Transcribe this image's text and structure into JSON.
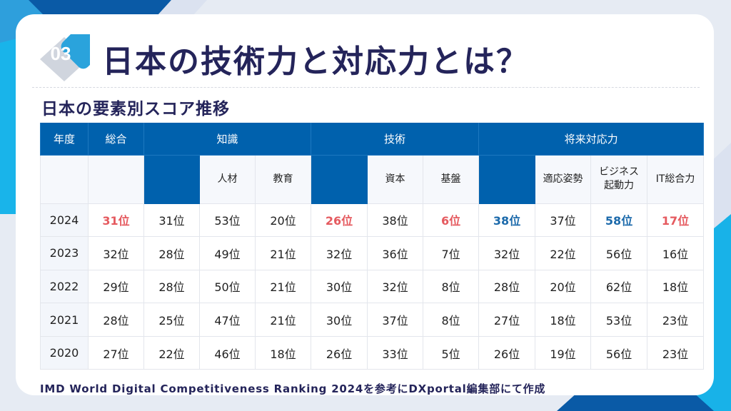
{
  "colors": {
    "header": "#0061ad",
    "highlight_red": "#e55a5f",
    "highlight_blue": "#1c6aab",
    "title": "#24245a",
    "accent": "#2aa3dc"
  },
  "header": {
    "badge": "03",
    "title": "日本の技術力と対応力とは？"
  },
  "section": {
    "subtitle": "日本の要素別スコア推移"
  },
  "table": {
    "group_headers": [
      {
        "label": "年度",
        "span": 1
      },
      {
        "label": "総合",
        "span": 1
      },
      {
        "label": "知識",
        "span": 3
      },
      {
        "label": "技術",
        "span": 3
      },
      {
        "label": "将来対応力",
        "span": 4
      }
    ],
    "sub_headers": [
      "",
      "",
      "",
      "人材",
      "教育",
      "",
      "資本",
      "基盤",
      "",
      "適応姿勢",
      "ビジネス\n起動力",
      "IT総合力"
    ],
    "rows": [
      {
        "year": "2024",
        "cells": [
          "31位",
          "31位",
          "53位",
          "20位",
          "26位",
          "38位",
          "6位",
          "38位",
          "37位",
          "58位",
          "17位"
        ],
        "highlight": [
          "red",
          "",
          "",
          "",
          "red",
          "",
          "red",
          "blue",
          "",
          "blue",
          "red"
        ]
      },
      {
        "year": "2023",
        "cells": [
          "32位",
          "28位",
          "49位",
          "21位",
          "32位",
          "36位",
          "7位",
          "32位",
          "22位",
          "56位",
          "16位"
        ]
      },
      {
        "year": "2022",
        "cells": [
          "29位",
          "28位",
          "50位",
          "21位",
          "30位",
          "32位",
          "8位",
          "28位",
          "20位",
          "62位",
          "18位"
        ]
      },
      {
        "year": "2021",
        "cells": [
          "28位",
          "25位",
          "47位",
          "21位",
          "30位",
          "37位",
          "8位",
          "27位",
          "18位",
          "53位",
          "23位"
        ]
      },
      {
        "year": "2020",
        "cells": [
          "27位",
          "22位",
          "46位",
          "18位",
          "26位",
          "33位",
          "5位",
          "26位",
          "19位",
          "56位",
          "23位"
        ]
      }
    ]
  },
  "footer": {
    "source": "IMD World Digital Competitiveness Ranking 2024を参考にDXportal編集部にて作成"
  }
}
